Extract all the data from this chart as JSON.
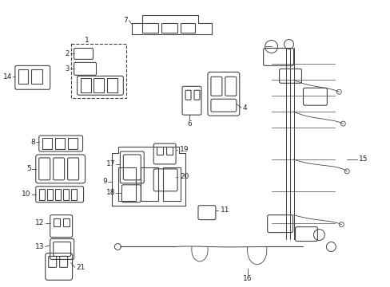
{
  "background_color": "#ffffff",
  "line_color": "#444444",
  "text_color": "#222222",
  "fig_width": 4.89,
  "fig_height": 3.6,
  "dpi": 100
}
